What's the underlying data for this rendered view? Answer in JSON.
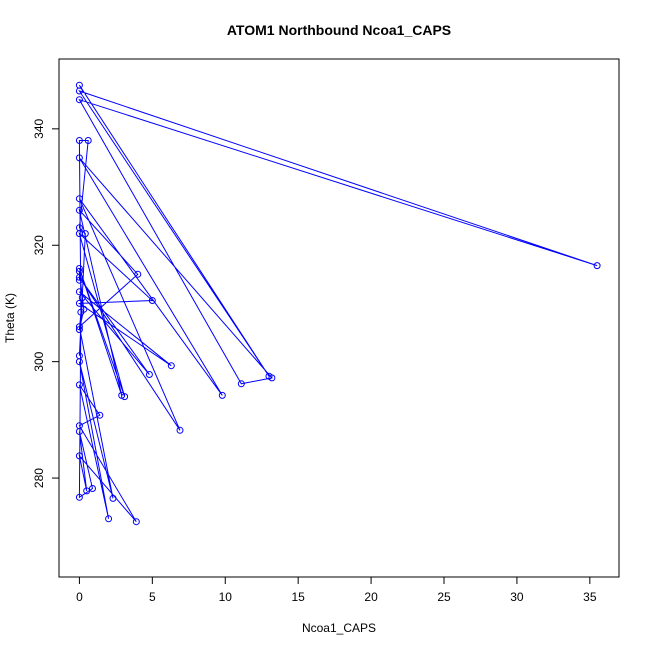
{
  "chart_data": {
    "type": "line",
    "title": "ATOM1 Northbound Ncoa1_CAPS",
    "xlabel": "Ncoa1_CAPS",
    "ylabel": "Theta (K)",
    "xlim": [
      -1.4,
      37.0
    ],
    "ylim": [
      263.0,
      352.0
    ],
    "xticks": [
      0,
      5,
      10,
      15,
      20,
      25,
      30,
      35
    ],
    "yticks": [
      280,
      300,
      320,
      340
    ],
    "grid": false,
    "color": "#0000ff",
    "series": [
      {
        "x": [
          0.0,
          13.0,
          0.0,
          35.5,
          0.0,
          11.1,
          13.2,
          0.0,
          9.8,
          0.0,
          6.9,
          0.0,
          4.8,
          0.0,
          6.3,
          0.0,
          5.0,
          0.0,
          3.1,
          0.0,
          2.9,
          0.0,
          4.0,
          0.0,
          2.3,
          0.0,
          2.0,
          0.0,
          1.4,
          0.0,
          3.9,
          0.0,
          0.5,
          0.0,
          0.9,
          0.0,
          0.1,
          0.0,
          0.6,
          0.0,
          0.4,
          0.0,
          0.2,
          0.0,
          0.3,
          0.0,
          0.0
        ],
        "y": [
          347.5,
          297.5,
          346.5,
          316.5,
          345.0,
          296.2,
          297.2,
          335.0,
          294.2,
          328.0,
          288.2,
          314.5,
          297.8,
          312.0,
          299.3,
          310.0,
          310.5,
          322.0,
          294.0,
          316.0,
          294.2,
          326.0,
          315.0,
          306.0,
          276.5,
          300.0,
          273.0,
          296.0,
          290.8,
          289.0,
          272.5,
          283.8,
          277.8,
          288.0,
          278.2,
          276.7,
          308.5,
          338.0,
          338.0,
          323.0,
          322.0,
          301.0,
          311.0,
          305.5,
          309.0,
          315.5,
          314.0
        ]
      }
    ]
  }
}
